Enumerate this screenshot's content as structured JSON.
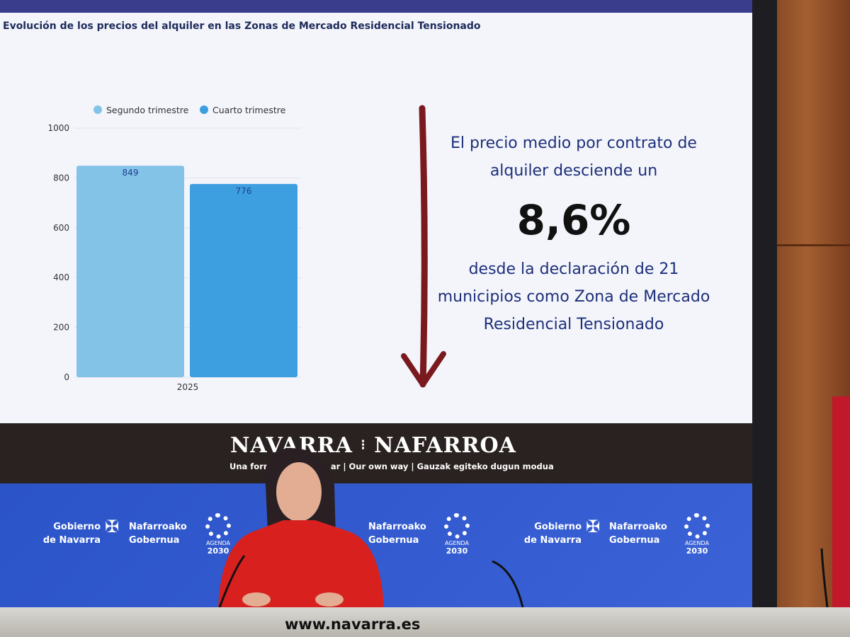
{
  "slide": {
    "title": "Evolución de los precios del alquiler en las Zonas de Mercado Residencial Tensionado",
    "message_top": "El precio medio por contrato de alquiler desciende un",
    "percentage": "8,6%",
    "message_bottom": "desde la declaración de 21 municipios como Zona de Mercado Residencial Tensionado",
    "arrow_color": "#7a1a1f"
  },
  "chart_data": {
    "type": "bar",
    "title": "Evolución de los precios del alquiler en las Zonas de Mercado Residencial Tensionado",
    "categories": [
      "2025"
    ],
    "series": [
      {
        "name": "Segundo trimestre",
        "values": [
          849
        ],
        "color": "#84c3e8"
      },
      {
        "name": "Cuarto trimestre",
        "values": [
          776
        ],
        "color": "#3d9fe0"
      }
    ],
    "ylim": [
      0,
      1000
    ],
    "yticks": [
      "0",
      "200",
      "400",
      "600",
      "800",
      "1000"
    ],
    "grid": true,
    "legend": "top"
  },
  "banner": {
    "brand_left": "NAVARRA",
    "brand_right": "NAFARROA",
    "tagline_visible_left": "Una form",
    "tagline_visible_right": "ar | Our own way | Gauzak egiteko dugun modua"
  },
  "logos": {
    "line1_left": "Gobierno",
    "line2_left": "de Navarra",
    "line1_right": "Nafarroako",
    "line2_right": "Gobernua",
    "agenda": "AGENDA",
    "agenda_year": "2030"
  },
  "desk": {
    "url": "www.navarra.es"
  }
}
